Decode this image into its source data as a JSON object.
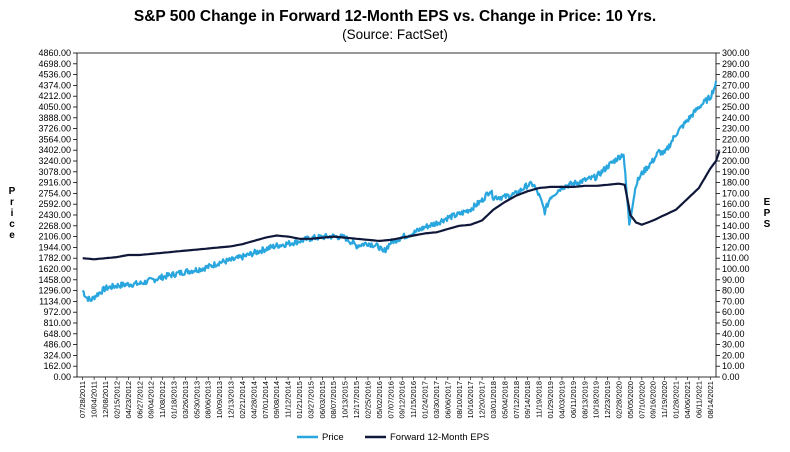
{
  "chart_data": {
    "type": "line",
    "title": "S&P 500 Change in Forward 12-Month EPS vs. Change in Price: 10 Yrs.",
    "subtitle": "(Source: FactSet)",
    "ylabel_left": "Price",
    "ylabel_right": "EPS",
    "ylim_left": [
      0,
      4860
    ],
    "ylim_right": [
      0,
      300
    ],
    "yticks_left": [
      "4860.00",
      "4698.00",
      "4536.00",
      "4374.00",
      "4212.00",
      "4050.00",
      "3888.00",
      "3726.00",
      "3564.00",
      "3402.00",
      "3240.00",
      "3078.00",
      "2916.00",
      "2754.00",
      "2592.00",
      "2430.00",
      "2268.00",
      "2106.00",
      "1944.00",
      "1782.00",
      "1620.00",
      "1458.00",
      "1296.00",
      "1134.00",
      "972.00",
      "810.00",
      "648.00",
      "486.00",
      "324.00",
      "162.00",
      "0.00"
    ],
    "yticks_right": [
      "300.00",
      "290.00",
      "280.00",
      "270.00",
      "260.00",
      "250.00",
      "240.00",
      "230.00",
      "220.00",
      "210.00",
      "200.00",
      "190.00",
      "180.00",
      "170.00",
      "160.00",
      "150.00",
      "140.00",
      "130.00",
      "120.00",
      "110.00",
      "100.00",
      "90.00",
      "80.00",
      "70.00",
      "60.00",
      "50.00",
      "40.00",
      "30.00",
      "20.00",
      "10.00",
      "0.00"
    ],
    "xticks": [
      "07/28/2011",
      "10/04/2011",
      "12/08/2011",
      "02/15/2012",
      "04/23/2012",
      "06/27/2012",
      "09/04/2012",
      "11/08/2012",
      "01/18/2013",
      "03/26/2013",
      "05/30/2013",
      "08/06/2013",
      "10/09/2013",
      "12/13/2013",
      "02/21/2014",
      "04/28/2014",
      "07/01/2014",
      "09/08/2014",
      "11/12/2014",
      "01/21/2015",
      "03/27/2015",
      "06/03/2015",
      "08/07/2015",
      "10/13/2015",
      "12/17/2015",
      "02/25/2016",
      "05/02/2016",
      "07/07/2016",
      "09/12/2016",
      "11/15/2016",
      "01/24/2017",
      "03/30/2017",
      "06/06/2017",
      "08/10/2017",
      "10/16/2017",
      "12/20/2017",
      "03/01/2018",
      "05/04/2018",
      "07/12/2018",
      "09/14/2018",
      "11/19/2018",
      "01/29/2019",
      "04/03/2019",
      "06/11/2019",
      "08/13/2019",
      "10/18/2019",
      "12/23/2019",
      "02/28/2020",
      "05/05/2020",
      "07/10/2020",
      "09/16/2020",
      "11/19/2020",
      "01/28/2021",
      "04/06/2021",
      "06/11/2021",
      "08/14/2021"
    ],
    "grid": false,
    "legend_position": "bottom",
    "series": [
      {
        "name": "Price",
        "axis": "left",
        "color": "#29a6de",
        "points": [
          [
            0,
            1300
          ],
          [
            0.3,
            1200
          ],
          [
            0.7,
            1150
          ],
          [
            1.2,
            1230
          ],
          [
            2,
            1330
          ],
          [
            3,
            1370
          ],
          [
            4,
            1390
          ],
          [
            5,
            1400
          ],
          [
            6,
            1450
          ],
          [
            7,
            1500
          ],
          [
            8,
            1540
          ],
          [
            9,
            1580
          ],
          [
            10,
            1610
          ],
          [
            11,
            1650
          ],
          [
            12,
            1720
          ],
          [
            13,
            1750
          ],
          [
            14,
            1800
          ],
          [
            15,
            1860
          ],
          [
            16,
            1920
          ],
          [
            17,
            1970
          ],
          [
            18,
            2000
          ],
          [
            19,
            2040
          ],
          [
            20,
            2080
          ],
          [
            21,
            2100
          ],
          [
            22,
            2110
          ],
          [
            23,
            2090
          ],
          [
            24,
            1970
          ],
          [
            25,
            2010
          ],
          [
            26,
            1950
          ],
          [
            26.3,
            1860
          ],
          [
            27,
            2020
          ],
          [
            28,
            2100
          ],
          [
            29,
            2160
          ],
          [
            30,
            2250
          ],
          [
            31,
            2310
          ],
          [
            32,
            2390
          ],
          [
            33,
            2440
          ],
          [
            34,
            2520
          ],
          [
            35,
            2650
          ],
          [
            35.7,
            2800
          ],
          [
            36,
            2700
          ],
          [
            37,
            2700
          ],
          [
            38,
            2750
          ],
          [
            39,
            2880
          ],
          [
            39.5,
            2890
          ],
          [
            40,
            2720
          ],
          [
            40.5,
            2480
          ],
          [
            41,
            2700
          ],
          [
            42,
            2850
          ],
          [
            43,
            2900
          ],
          [
            44,
            2950
          ],
          [
            45,
            3000
          ],
          [
            46,
            3160
          ],
          [
            47,
            3300
          ],
          [
            47.4,
            3350
          ],
          [
            47.7,
            2700
          ],
          [
            47.9,
            2300
          ],
          [
            48.5,
            2900
          ],
          [
            49,
            3050
          ],
          [
            50,
            3250
          ],
          [
            50.5,
            3380
          ],
          [
            51,
            3350
          ],
          [
            52,
            3650
          ],
          [
            53,
            3850
          ],
          [
            54,
            4050
          ],
          [
            55,
            4200
          ],
          [
            55.5,
            4400
          ]
        ]
      },
      {
        "name": "Forward 12-Month EPS",
        "axis": "right",
        "color": "#10183a",
        "points": [
          [
            0,
            110
          ],
          [
            1,
            109
          ],
          [
            2,
            110
          ],
          [
            3,
            111
          ],
          [
            4,
            113
          ],
          [
            5,
            113
          ],
          [
            6,
            114
          ],
          [
            7,
            115
          ],
          [
            8,
            116
          ],
          [
            9,
            117
          ],
          [
            10,
            118
          ],
          [
            11,
            119
          ],
          [
            12,
            120
          ],
          [
            13,
            121
          ],
          [
            14,
            123
          ],
          [
            15,
            126
          ],
          [
            16,
            129
          ],
          [
            17,
            131
          ],
          [
            18,
            130
          ],
          [
            19,
            128
          ],
          [
            20,
            128
          ],
          [
            21,
            129
          ],
          [
            22,
            130
          ],
          [
            23,
            129
          ],
          [
            24,
            128
          ],
          [
            25,
            127
          ],
          [
            26,
            126
          ],
          [
            27,
            127
          ],
          [
            28,
            129
          ],
          [
            29,
            131
          ],
          [
            30,
            133
          ],
          [
            31,
            134
          ],
          [
            32,
            137
          ],
          [
            33,
            140
          ],
          [
            34,
            141
          ],
          [
            35,
            145
          ],
          [
            36,
            155
          ],
          [
            37,
            162
          ],
          [
            38,
            168
          ],
          [
            39,
            172
          ],
          [
            40,
            175
          ],
          [
            41,
            176
          ],
          [
            42,
            176
          ],
          [
            43,
            176
          ],
          [
            44,
            177
          ],
          [
            45,
            177
          ],
          [
            46,
            178
          ],
          [
            47,
            179
          ],
          [
            47.5,
            178
          ],
          [
            48,
            150
          ],
          [
            48.5,
            143
          ],
          [
            49,
            141
          ],
          [
            50,
            145
          ],
          [
            51,
            150
          ],
          [
            52,
            155
          ],
          [
            53,
            165
          ],
          [
            54,
            175
          ],
          [
            55,
            193
          ],
          [
            55.5,
            200
          ],
          [
            55.8,
            209
          ]
        ]
      }
    ]
  },
  "legend": {
    "price": "Price",
    "eps": "Forward 12-Month EPS"
  }
}
